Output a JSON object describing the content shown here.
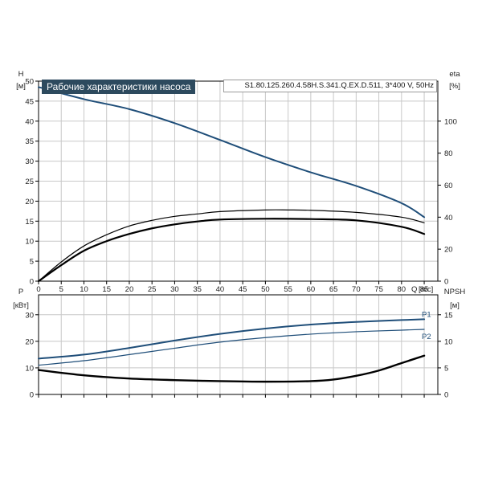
{
  "header": {
    "title": "Рабочие характеристики насоса",
    "model": "S1.80.125.260.4.58H.S.341.Q.EX.D.511, 3*400 V, 50Hz"
  },
  "colors": {
    "blue": "#1f4e79",
    "black": "#000000",
    "grid": "#c8c8c8",
    "title_bg": "#2d4a5e"
  },
  "chart_data": [
    {
      "type": "line",
      "grid": true,
      "x": {
        "label": "Q",
        "unit": "[л/с]",
        "range": [
          0,
          88
        ],
        "ticks": [
          0,
          5,
          10,
          15,
          20,
          25,
          30,
          35,
          40,
          45,
          50,
          55,
          60,
          65,
          70,
          75,
          80,
          85
        ]
      },
      "y_left": {
        "label": "H",
        "unit": "[м]",
        "range": [
          0,
          50
        ],
        "ticks": [
          0,
          5,
          10,
          15,
          20,
          25,
          30,
          35,
          40,
          45,
          50
        ]
      },
      "y_right": {
        "label": "eta",
        "unit": "[%]",
        "range": [
          0,
          125
        ],
        "ticks": [
          0,
          20,
          40,
          60,
          80,
          100
        ]
      },
      "series": [
        {
          "axis": "left",
          "color": "blue",
          "width": 2,
          "points": [
            [
              0,
              48.5
            ],
            [
              10,
              45.5
            ],
            [
              20,
              43
            ],
            [
              30,
              39.5
            ],
            [
              40,
              35.3
            ],
            [
              50,
              31
            ],
            [
              60,
              27.2
            ],
            [
              70,
              23.8
            ],
            [
              80,
              19.5
            ],
            [
              85,
              16
            ]
          ]
        },
        {
          "axis": "right",
          "color": "black",
          "width": 1.2,
          "points": [
            [
              0,
              0
            ],
            [
              5,
              12
            ],
            [
              10,
              22
            ],
            [
              15,
              29
            ],
            [
              20,
              34.5
            ],
            [
              25,
              38
            ],
            [
              30,
              40.5
            ],
            [
              35,
              42
            ],
            [
              40,
              43.5
            ],
            [
              50,
              44.5
            ],
            [
              55,
              44.5
            ],
            [
              60,
              44.3
            ],
            [
              70,
              43
            ],
            [
              80,
              40
            ],
            [
              85,
              36.5
            ]
          ]
        },
        {
          "axis": "right",
          "color": "black",
          "width": 2.2,
          "points": [
            [
              0,
              0
            ],
            [
              5,
              10
            ],
            [
              10,
              19
            ],
            [
              15,
              25
            ],
            [
              20,
              29.5
            ],
            [
              25,
              33
            ],
            [
              30,
              35.5
            ],
            [
              35,
              37.3
            ],
            [
              40,
              38.5
            ],
            [
              50,
              39
            ],
            [
              60,
              38.8
            ],
            [
              70,
              38
            ],
            [
              80,
              34
            ],
            [
              85,
              29.5
            ]
          ]
        }
      ]
    },
    {
      "type": "line",
      "grid": true,
      "x": {
        "range": [
          0,
          88
        ]
      },
      "y_left": {
        "label": "P",
        "unit": "[кВт]",
        "range": [
          0,
          37.5
        ],
        "ticks": [
          0,
          10,
          20,
          30
        ]
      },
      "y_right": {
        "label": "NPSH",
        "unit": "[м]",
        "range": [
          0,
          18.75
        ],
        "ticks": [
          0,
          5,
          10,
          15
        ]
      },
      "series": [
        {
          "name": "P1",
          "axis": "left",
          "color": "blue",
          "width": 2,
          "points": [
            [
              0,
              13.5
            ],
            [
              10,
              15
            ],
            [
              20,
              17.5
            ],
            [
              30,
              20.3
            ],
            [
              40,
              22.8
            ],
            [
              50,
              24.8
            ],
            [
              60,
              26.3
            ],
            [
              70,
              27.3
            ],
            [
              80,
              28
            ],
            [
              85,
              28.3
            ]
          ]
        },
        {
          "name": "P2",
          "axis": "left",
          "color": "blue",
          "width": 1.2,
          "points": [
            [
              0,
              11
            ],
            [
              10,
              12.7
            ],
            [
              20,
              15
            ],
            [
              30,
              17.4
            ],
            [
              40,
              19.7
            ],
            [
              50,
              21.4
            ],
            [
              60,
              22.7
            ],
            [
              70,
              23.6
            ],
            [
              80,
              24.2
            ],
            [
              85,
              24.5
            ]
          ]
        },
        {
          "axis": "right",
          "color": "black",
          "width": 2.4,
          "points": [
            [
              0,
              4.6
            ],
            [
              10,
              3.6
            ],
            [
              20,
              3
            ],
            [
              30,
              2.7
            ],
            [
              40,
              2.5
            ],
            [
              50,
              2.4
            ],
            [
              60,
              2.5
            ],
            [
              65,
              2.8
            ],
            [
              70,
              3.5
            ],
            [
              75,
              4.5
            ],
            [
              80,
              5.9
            ],
            [
              85,
              7.3
            ]
          ]
        }
      ]
    }
  ]
}
